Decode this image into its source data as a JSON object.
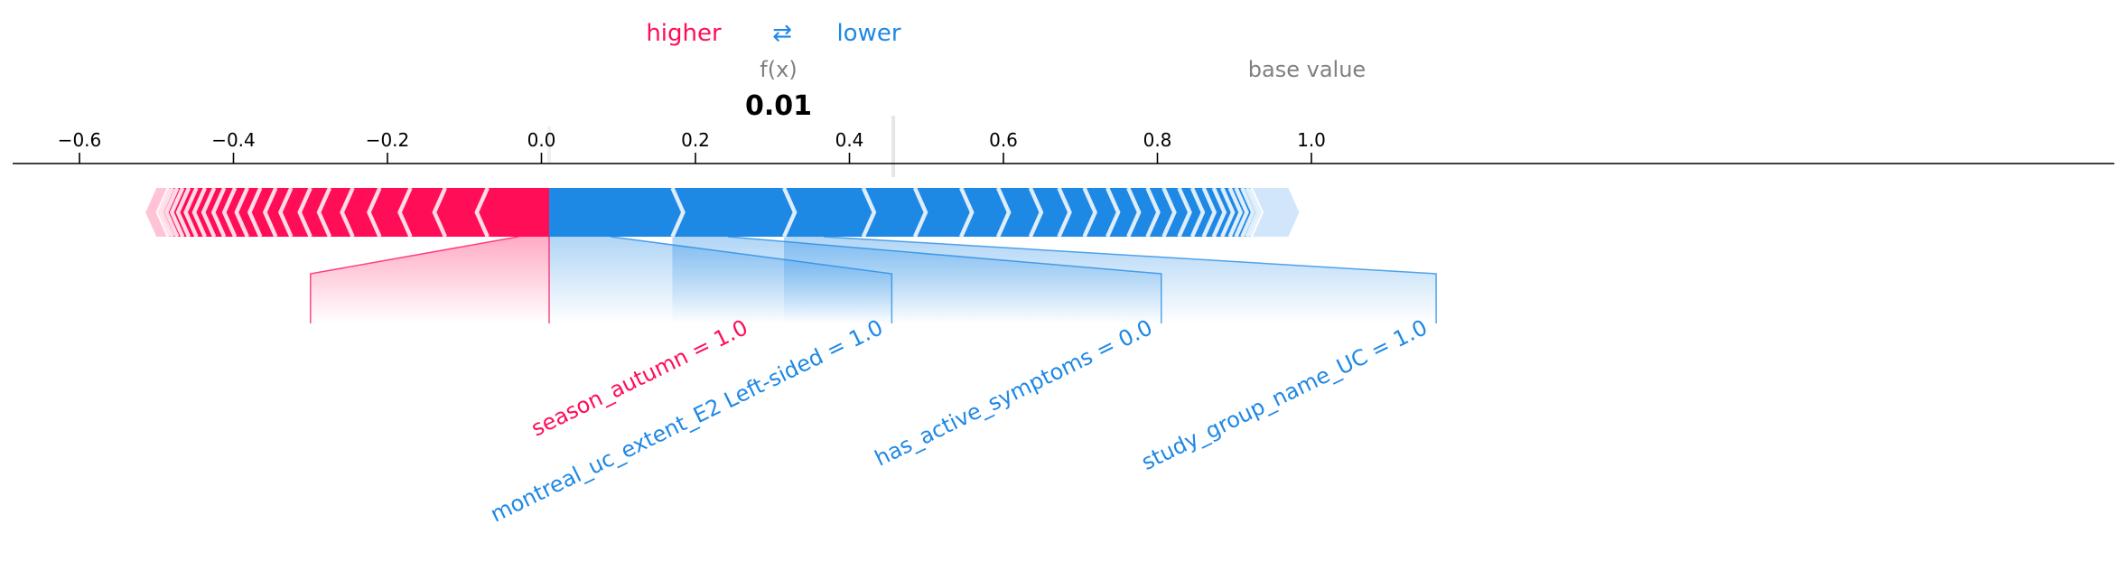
{
  "chart_data": {
    "type": "force",
    "legend": {
      "higher": "higher",
      "arrow": "⇄",
      "lower": "lower"
    },
    "output": {
      "label": "f(x)",
      "value": 0.01,
      "value_text": "0.01"
    },
    "base_value": {
      "label": "base value",
      "value": 0.457
    },
    "xlim": [
      -0.66,
      1.16
    ],
    "ticks": [
      -0.6,
      -0.4,
      -0.2,
      0.0,
      0.2,
      0.4,
      0.6,
      0.8,
      1.0
    ],
    "tick_labels": [
      "−0.6",
      "−0.4",
      "−0.2",
      "0.0",
      "0.2",
      "0.4",
      "0.6",
      "0.8",
      "1.0"
    ],
    "colors": {
      "positive": "#ff0d57",
      "negative": "#1e88e5",
      "positive_light": "#ffc3d5",
      "negative_light": "#d1e6fa",
      "label_gray": "#808080"
    },
    "positive_features": [
      {
        "name": "season_autumn = 1.0",
        "from": 0.01,
        "to": -0.07,
        "label_anchor": -0.3
      },
      {
        "name": "",
        "from": -0.07,
        "to": -0.125
      },
      {
        "name": "",
        "from": -0.125,
        "to": -0.17
      },
      {
        "name": "",
        "from": -0.17,
        "to": -0.21
      },
      {
        "name": "",
        "from": -0.21,
        "to": -0.245
      },
      {
        "name": "",
        "from": -0.245,
        "to": -0.275
      },
      {
        "name": "",
        "from": -0.275,
        "to": -0.3
      },
      {
        "name": "",
        "from": -0.3,
        "to": -0.325
      },
      {
        "name": "",
        "from": -0.325,
        "to": -0.345
      },
      {
        "name": "",
        "from": -0.345,
        "to": -0.365
      },
      {
        "name": "",
        "from": -0.365,
        "to": -0.382
      },
      {
        "name": "",
        "from": -0.382,
        "to": -0.398
      },
      {
        "name": "",
        "from": -0.398,
        "to": -0.412
      },
      {
        "name": "",
        "from": -0.412,
        "to": -0.425
      },
      {
        "name": "",
        "from": -0.425,
        "to": -0.437
      },
      {
        "name": "",
        "from": -0.437,
        "to": -0.448
      },
      {
        "name": "",
        "from": -0.448,
        "to": -0.458
      },
      {
        "name": "",
        "from": -0.458,
        "to": -0.466
      },
      {
        "name": "",
        "from": -0.466,
        "to": -0.473
      },
      {
        "name": "",
        "from": -0.473,
        "to": -0.479
      },
      {
        "name": "",
        "from": -0.479,
        "to": -0.484
      },
      {
        "name": "",
        "from": -0.484,
        "to": -0.5
      }
    ],
    "negative_features": [
      {
        "name": "montreal_uc_extent_E2 Left-sided = 1.0",
        "from": 0.01,
        "to": 0.17,
        "label_anchor": 0.455
      },
      {
        "name": "has_active_symptoms = 0.0",
        "from": 0.17,
        "to": 0.315,
        "label_anchor": 0.805
      },
      {
        "name": "study_group_name_UC = 1.0",
        "from": 0.315,
        "to": 0.418,
        "label_anchor": 1.162
      },
      {
        "name": "",
        "from": 0.418,
        "to": 0.485
      },
      {
        "name": "",
        "from": 0.485,
        "to": 0.545
      },
      {
        "name": "",
        "from": 0.545,
        "to": 0.593
      },
      {
        "name": "",
        "from": 0.593,
        "to": 0.635
      },
      {
        "name": "",
        "from": 0.635,
        "to": 0.672
      },
      {
        "name": "",
        "from": 0.672,
        "to": 0.705
      },
      {
        "name": "",
        "from": 0.705,
        "to": 0.735
      },
      {
        "name": "",
        "from": 0.735,
        "to": 0.762
      },
      {
        "name": "",
        "from": 0.762,
        "to": 0.787
      },
      {
        "name": "",
        "from": 0.787,
        "to": 0.808
      },
      {
        "name": "",
        "from": 0.808,
        "to": 0.828
      },
      {
        "name": "",
        "from": 0.828,
        "to": 0.845
      },
      {
        "name": "",
        "from": 0.845,
        "to": 0.86
      },
      {
        "name": "",
        "from": 0.86,
        "to": 0.873
      },
      {
        "name": "",
        "from": 0.873,
        "to": 0.884
      },
      {
        "name": "",
        "from": 0.884,
        "to": 0.894
      },
      {
        "name": "",
        "from": 0.894,
        "to": 0.902
      },
      {
        "name": "",
        "from": 0.902,
        "to": 0.91
      },
      {
        "name": "",
        "from": 0.91,
        "to": 0.916
      },
      {
        "name": "",
        "from": 0.916,
        "to": 0.921
      },
      {
        "name": "",
        "from": 0.921,
        "to": 0.97
      }
    ]
  }
}
